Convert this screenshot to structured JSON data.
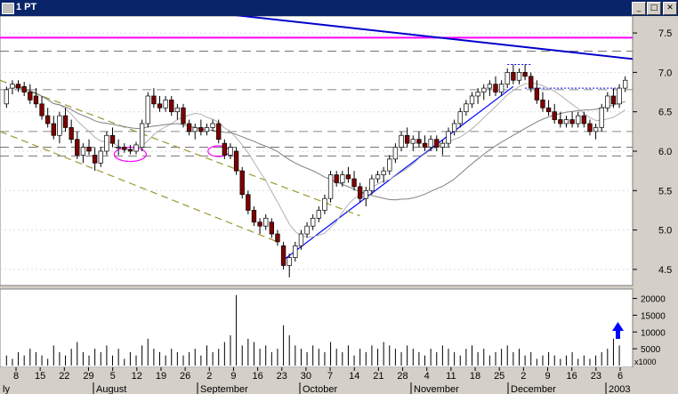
{
  "window": {
    "title": "1 PT",
    "buttons": {
      "minimize": "_",
      "maximize": "□",
      "close": "✕"
    }
  },
  "chart_data": {
    "type": "candlestick",
    "price_axis": {
      "ticks": [
        "7.5",
        "7.0",
        "6.5",
        "6.0",
        "5.5",
        "5.0",
        "4.5"
      ],
      "ylim": [
        4.33,
        7.67
      ]
    },
    "volume_axis": {
      "ticks": [
        "20000",
        "15000",
        "10000",
        "5000"
      ],
      "ylim": [
        0,
        22000
      ],
      "unit": "x1000"
    },
    "x_day_labels": [
      "8",
      "15",
      "22",
      "29",
      "5",
      "12",
      "19",
      "26",
      "2",
      "9",
      "16",
      "23",
      "30",
      "7",
      "14",
      "21",
      "28",
      "4",
      "11",
      "18",
      "25",
      "2",
      "9",
      "16",
      "23",
      "6"
    ],
    "x_month_labels": [
      "ly",
      "August",
      "September",
      "October",
      "November",
      "December",
      "2003"
    ],
    "candles": [
      {
        "o": 6.6,
        "h": 6.82,
        "l": 6.55,
        "c": 6.78
      },
      {
        "o": 6.8,
        "h": 6.9,
        "l": 6.72,
        "c": 6.85
      },
      {
        "o": 6.85,
        "h": 6.9,
        "l": 6.75,
        "c": 6.8
      },
      {
        "o": 6.82,
        "h": 6.88,
        "l": 6.7,
        "c": 6.75
      },
      {
        "o": 6.75,
        "h": 6.85,
        "l": 6.6,
        "c": 6.65
      },
      {
        "o": 6.7,
        "h": 6.8,
        "l": 6.55,
        "c": 6.6
      },
      {
        "o": 6.6,
        "h": 6.7,
        "l": 6.4,
        "c": 6.45
      },
      {
        "o": 6.45,
        "h": 6.55,
        "l": 6.3,
        "c": 6.35
      },
      {
        "o": 6.35,
        "h": 6.45,
        "l": 6.15,
        "c": 6.2
      },
      {
        "o": 6.2,
        "h": 6.5,
        "l": 6.1,
        "c": 6.45
      },
      {
        "o": 6.45,
        "h": 6.55,
        "l": 6.25,
        "c": 6.3
      },
      {
        "o": 6.3,
        "h": 6.4,
        "l": 6.1,
        "c": 6.15
      },
      {
        "o": 6.15,
        "h": 6.25,
        "l": 5.9,
        "c": 5.95
      },
      {
        "o": 5.95,
        "h": 6.1,
        "l": 5.85,
        "c": 6.05
      },
      {
        "o": 6.05,
        "h": 6.15,
        "l": 5.95,
        "c": 6.0
      },
      {
        "o": 5.95,
        "h": 6.05,
        "l": 5.75,
        "c": 5.85
      },
      {
        "o": 5.85,
        "h": 6.05,
        "l": 5.8,
        "c": 6.0
      },
      {
        "o": 6.0,
        "h": 6.25,
        "l": 5.95,
        "c": 6.2
      },
      {
        "o": 6.2,
        "h": 6.3,
        "l": 6.05,
        "c": 6.1
      },
      {
        "o": 6.05,
        "h": 6.15,
        "l": 5.95,
        "c": 6.05
      },
      {
        "o": 6.05,
        "h": 6.1,
        "l": 5.98,
        "c": 6.02
      },
      {
        "o": 6.02,
        "h": 6.08,
        "l": 5.96,
        "c": 6.0
      },
      {
        "o": 6.0,
        "h": 6.12,
        "l": 5.96,
        "c": 6.08
      },
      {
        "o": 6.05,
        "h": 6.4,
        "l": 6.0,
        "c": 6.35
      },
      {
        "o": 6.35,
        "h": 6.75,
        "l": 6.3,
        "c": 6.7
      },
      {
        "o": 6.7,
        "h": 6.8,
        "l": 6.55,
        "c": 6.6
      },
      {
        "o": 6.6,
        "h": 6.7,
        "l": 6.5,
        "c": 6.55
      },
      {
        "o": 6.55,
        "h": 6.7,
        "l": 6.5,
        "c": 6.65
      },
      {
        "o": 6.65,
        "h": 6.7,
        "l": 6.45,
        "c": 6.5
      },
      {
        "o": 6.5,
        "h": 6.6,
        "l": 6.4,
        "c": 6.55
      },
      {
        "o": 6.55,
        "h": 6.6,
        "l": 6.3,
        "c": 6.35
      },
      {
        "o": 6.35,
        "h": 6.4,
        "l": 6.2,
        "c": 6.25
      },
      {
        "o": 6.25,
        "h": 6.35,
        "l": 6.15,
        "c": 6.3
      },
      {
        "o": 6.3,
        "h": 6.4,
        "l": 6.2,
        "c": 6.25
      },
      {
        "o": 6.25,
        "h": 6.35,
        "l": 6.2,
        "c": 6.3
      },
      {
        "o": 6.3,
        "h": 6.4,
        "l": 6.25,
        "c": 6.35
      },
      {
        "o": 6.35,
        "h": 6.4,
        "l": 6.1,
        "c": 6.15
      },
      {
        "o": 6.1,
        "h": 6.15,
        "l": 5.9,
        "c": 5.95
      },
      {
        "o": 5.95,
        "h": 6.1,
        "l": 5.9,
        "c": 6.05
      },
      {
        "o": 6.0,
        "h": 6.05,
        "l": 5.7,
        "c": 5.75
      },
      {
        "o": 5.75,
        "h": 5.8,
        "l": 5.4,
        "c": 5.45
      },
      {
        "o": 5.45,
        "h": 5.5,
        "l": 5.2,
        "c": 5.25
      },
      {
        "o": 5.25,
        "h": 5.3,
        "l": 5.05,
        "c": 5.1
      },
      {
        "o": 5.1,
        "h": 5.15,
        "l": 4.95,
        "c": 5.05
      },
      {
        "o": 5.05,
        "h": 5.2,
        "l": 5.0,
        "c": 5.15
      },
      {
        "o": 5.1,
        "h": 5.15,
        "l": 4.9,
        "c": 4.95
      },
      {
        "o": 4.95,
        "h": 5.0,
        "l": 4.8,
        "c": 4.85
      },
      {
        "o": 4.8,
        "h": 4.85,
        "l": 4.5,
        "c": 4.55
      },
      {
        "o": 4.55,
        "h": 4.7,
        "l": 4.4,
        "c": 4.65
      },
      {
        "o": 4.65,
        "h": 4.85,
        "l": 4.6,
        "c": 4.8
      },
      {
        "o": 4.8,
        "h": 5.0,
        "l": 4.75,
        "c": 4.95
      },
      {
        "o": 4.95,
        "h": 5.1,
        "l": 4.9,
        "c": 5.05
      },
      {
        "o": 5.05,
        "h": 5.2,
        "l": 5.0,
        "c": 5.15
      },
      {
        "o": 5.15,
        "h": 5.3,
        "l": 5.1,
        "c": 5.25
      },
      {
        "o": 5.25,
        "h": 5.45,
        "l": 5.2,
        "c": 5.4
      },
      {
        "o": 5.4,
        "h": 5.75,
        "l": 5.35,
        "c": 5.7
      },
      {
        "o": 5.7,
        "h": 5.75,
        "l": 5.55,
        "c": 5.6
      },
      {
        "o": 5.6,
        "h": 5.75,
        "l": 5.55,
        "c": 5.7
      },
      {
        "o": 5.7,
        "h": 5.8,
        "l": 5.6,
        "c": 5.65
      },
      {
        "o": 5.65,
        "h": 5.75,
        "l": 5.5,
        "c": 5.55
      },
      {
        "o": 5.55,
        "h": 5.6,
        "l": 5.35,
        "c": 5.4
      },
      {
        "o": 5.4,
        "h": 5.55,
        "l": 5.3,
        "c": 5.5
      },
      {
        "o": 5.5,
        "h": 5.7,
        "l": 5.45,
        "c": 5.65
      },
      {
        "o": 5.65,
        "h": 5.75,
        "l": 5.6,
        "c": 5.7
      },
      {
        "o": 5.7,
        "h": 5.8,
        "l": 5.6,
        "c": 5.75
      },
      {
        "o": 5.75,
        "h": 5.95,
        "l": 5.7,
        "c": 5.9
      },
      {
        "o": 5.9,
        "h": 6.1,
        "l": 5.85,
        "c": 6.05
      },
      {
        "o": 6.05,
        "h": 6.25,
        "l": 6.0,
        "c": 6.2
      },
      {
        "o": 6.2,
        "h": 6.3,
        "l": 6.05,
        "c": 6.1
      },
      {
        "o": 6.1,
        "h": 6.2,
        "l": 6.0,
        "c": 6.15
      },
      {
        "o": 6.15,
        "h": 6.25,
        "l": 6.05,
        "c": 6.1
      },
      {
        "o": 6.1,
        "h": 6.2,
        "l": 6.0,
        "c": 6.05
      },
      {
        "o": 6.05,
        "h": 6.2,
        "l": 6.0,
        "c": 6.15
      },
      {
        "o": 6.15,
        "h": 6.2,
        "l": 6.0,
        "c": 6.05
      },
      {
        "o": 6.05,
        "h": 6.15,
        "l": 5.95,
        "c": 6.1
      },
      {
        "o": 6.1,
        "h": 6.3,
        "l": 6.05,
        "c": 6.25
      },
      {
        "o": 6.25,
        "h": 6.4,
        "l": 6.2,
        "c": 6.35
      },
      {
        "o": 6.35,
        "h": 6.55,
        "l": 6.3,
        "c": 6.5
      },
      {
        "o": 6.5,
        "h": 6.65,
        "l": 6.45,
        "c": 6.6
      },
      {
        "o": 6.6,
        "h": 6.75,
        "l": 6.55,
        "c": 6.7
      },
      {
        "o": 6.7,
        "h": 6.8,
        "l": 6.6,
        "c": 6.75
      },
      {
        "o": 6.75,
        "h": 6.85,
        "l": 6.65,
        "c": 6.8
      },
      {
        "o": 6.8,
        "h": 6.9,
        "l": 6.7,
        "c": 6.85
      },
      {
        "o": 6.85,
        "h": 6.95,
        "l": 6.7,
        "c": 6.75
      },
      {
        "o": 6.75,
        "h": 6.9,
        "l": 6.7,
        "c": 6.85
      },
      {
        "o": 6.85,
        "h": 7.05,
        "l": 6.8,
        "c": 7.0
      },
      {
        "o": 7.0,
        "h": 7.1,
        "l": 6.85,
        "c": 6.9
      },
      {
        "o": 6.9,
        "h": 7.05,
        "l": 6.85,
        "c": 7.0
      },
      {
        "o": 7.0,
        "h": 7.1,
        "l": 6.9,
        "c": 6.95
      },
      {
        "o": 6.95,
        "h": 7.0,
        "l": 6.75,
        "c": 6.8
      },
      {
        "o": 6.8,
        "h": 6.9,
        "l": 6.6,
        "c": 6.65
      },
      {
        "o": 6.65,
        "h": 6.75,
        "l": 6.5,
        "c": 6.55
      },
      {
        "o": 6.55,
        "h": 6.65,
        "l": 6.45,
        "c": 6.5
      },
      {
        "o": 6.5,
        "h": 6.6,
        "l": 6.35,
        "c": 6.4
      },
      {
        "o": 6.4,
        "h": 6.5,
        "l": 6.3,
        "c": 6.35
      },
      {
        "o": 6.35,
        "h": 6.45,
        "l": 6.3,
        "c": 6.4
      },
      {
        "o": 6.4,
        "h": 6.5,
        "l": 6.3,
        "c": 6.35
      },
      {
        "o": 6.35,
        "h": 6.5,
        "l": 6.3,
        "c": 6.45
      },
      {
        "o": 6.45,
        "h": 6.5,
        "l": 6.3,
        "c": 6.35
      },
      {
        "o": 6.35,
        "h": 6.4,
        "l": 6.2,
        "c": 6.25
      },
      {
        "o": 6.25,
        "h": 6.35,
        "l": 6.15,
        "c": 6.3
      },
      {
        "o": 6.3,
        "h": 6.6,
        "l": 6.25,
        "c": 6.55
      },
      {
        "o": 6.55,
        "h": 6.75,
        "l": 6.5,
        "c": 6.7
      },
      {
        "o": 6.7,
        "h": 6.8,
        "l": 6.55,
        "c": 6.6
      },
      {
        "o": 6.6,
        "h": 6.85,
        "l": 6.55,
        "c": 6.8
      },
      {
        "o": 6.8,
        "h": 6.95,
        "l": 6.75,
        "c": 6.9
      }
    ],
    "volume": [
      3,
      2,
      4,
      3,
      5,
      4,
      3,
      2,
      6,
      4,
      3,
      5,
      7,
      4,
      3,
      5,
      4,
      6,
      3,
      5,
      2,
      4,
      3,
      6,
      8,
      5,
      4,
      3,
      5,
      4,
      3,
      4,
      5,
      3,
      6,
      4,
      5,
      7,
      9,
      21,
      6,
      8,
      7,
      5,
      6,
      4,
      5,
      12,
      9,
      6,
      5,
      4,
      6,
      5,
      4,
      7,
      5,
      4,
      6,
      3,
      5,
      4,
      6,
      5,
      7,
      6,
      5,
      4,
      6,
      5,
      4,
      3,
      5,
      4,
      6,
      5,
      4,
      3,
      5,
      6,
      4,
      5,
      3,
      4,
      5,
      6,
      4,
      5,
      3,
      4,
      2,
      3,
      4,
      3,
      2,
      3,
      4,
      2,
      3,
      2,
      3,
      4,
      5,
      8,
      6
    ],
    "volume_bar_count": 105,
    "overlays": {
      "long_trendline_color": "#0000cc",
      "horizontal_line_color": "#ff00ff",
      "support_line_color": "#0000ff",
      "channel_color": "#999933",
      "ellipse_color": "#ff00ff",
      "ma_color": "#808080"
    },
    "volume_indicator": "up-arrow-icon"
  }
}
